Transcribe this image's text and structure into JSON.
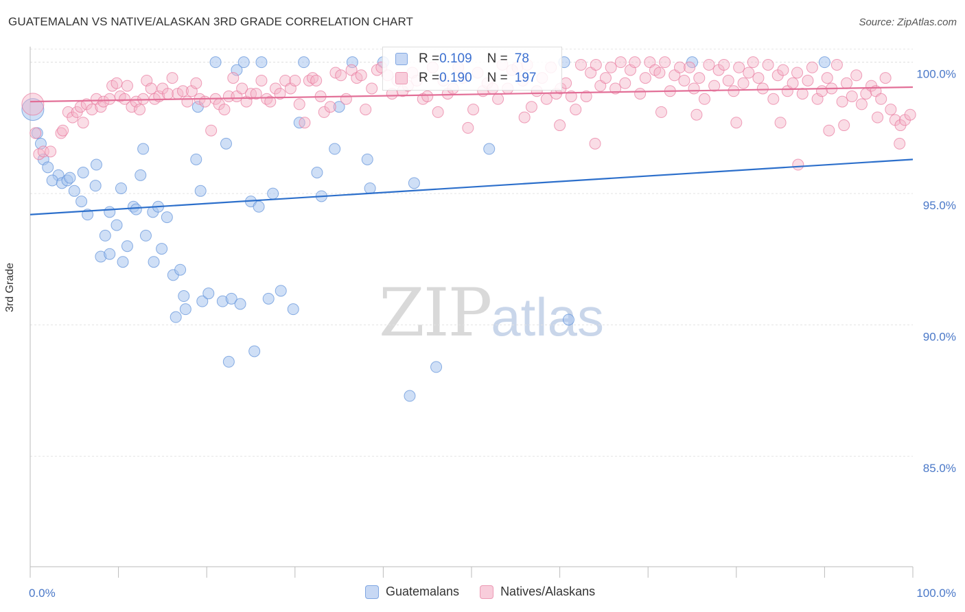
{
  "title": "GUATEMALAN VS NATIVE/ALASKAN 3RD GRADE CORRELATION CHART",
  "source": "Source: ZipAtlas.com",
  "watermark": {
    "zip": "ZIP",
    "atlas": "atlas"
  },
  "stats": [
    {
      "r_label": "R = ",
      "r": "0.109",
      "n_label": "N = ",
      "n": "78",
      "color": "#a8c4ee"
    },
    {
      "r_label": "R = ",
      "r": "0.190",
      "n_label": "N = ",
      "n": "197",
      "color": "#f4b3c8"
    }
  ],
  "chart_data": {
    "type": "scatter",
    "title": "GUATEMALAN VS NATIVE/ALASKAN 3RD GRADE CORRELATION CHART",
    "xlabel": "",
    "ylabel": "3rd Grade",
    "xlim": [
      0,
      100
    ],
    "ylim": [
      80.8,
      100.8
    ],
    "x_tick_labels": [
      "0.0%",
      "100.0%"
    ],
    "y_ticks": [
      85,
      90,
      95,
      100
    ],
    "y_tick_labels": [
      "85.0%",
      "90.0%",
      "95.0%",
      "100.0%"
    ],
    "grid": true,
    "legend_position": "bottom-center",
    "series": [
      {
        "name": "Guatemalans",
        "color": "#5b8fd8",
        "fill": "#a8c4ee",
        "trend": {
          "x": [
            0,
            100
          ],
          "y": [
            94.2,
            96.3
          ]
        },
        "points": [
          [
            0.3,
            98.2
          ],
          [
            0.8,
            97.3
          ],
          [
            1.2,
            96.9
          ],
          [
            1.5,
            96.3
          ],
          [
            2.0,
            96.0
          ],
          [
            3.2,
            95.7
          ],
          [
            2.5,
            95.5
          ],
          [
            3.6,
            95.4
          ],
          [
            4.2,
            95.5
          ],
          [
            4.5,
            95.6
          ],
          [
            5.0,
            95.1
          ],
          [
            6.0,
            95.8
          ],
          [
            5.8,
            94.7
          ],
          [
            6.5,
            94.2
          ],
          [
            7.4,
            95.3
          ],
          [
            7.5,
            96.1
          ],
          [
            9.0,
            94.3
          ],
          [
            8.5,
            93.4
          ],
          [
            8.0,
            92.6
          ],
          [
            9.0,
            92.7
          ],
          [
            9.8,
            93.8
          ],
          [
            10.3,
            95.2
          ],
          [
            10.5,
            92.4
          ],
          [
            11.0,
            93.0
          ],
          [
            11.7,
            94.5
          ],
          [
            12.0,
            94.4
          ],
          [
            12.5,
            95.7
          ],
          [
            12.8,
            96.7
          ],
          [
            13.1,
            93.4
          ],
          [
            13.9,
            94.3
          ],
          [
            14.0,
            92.4
          ],
          [
            14.5,
            94.5
          ],
          [
            14.9,
            92.9
          ],
          [
            15.5,
            94.1
          ],
          [
            16.2,
            91.9
          ],
          [
            16.5,
            90.3
          ],
          [
            17.0,
            92.1
          ],
          [
            17.4,
            91.1
          ],
          [
            17.6,
            90.6
          ],
          [
            18.8,
            96.3
          ],
          [
            19.0,
            98.3
          ],
          [
            19.3,
            95.1
          ],
          [
            19.5,
            90.9
          ],
          [
            20.2,
            91.2
          ],
          [
            21.0,
            100.0
          ],
          [
            21.8,
            90.9
          ],
          [
            22.2,
            96.9
          ],
          [
            22.5,
            88.6
          ],
          [
            22.8,
            91.0
          ],
          [
            23.4,
            99.7
          ],
          [
            23.8,
            90.8
          ],
          [
            24.2,
            100.0
          ],
          [
            25.0,
            94.7
          ],
          [
            25.4,
            89.0
          ],
          [
            25.9,
            94.5
          ],
          [
            26.2,
            100.0
          ],
          [
            27.0,
            91.0
          ],
          [
            27.5,
            95.0
          ],
          [
            28.4,
            91.3
          ],
          [
            29.8,
            90.6
          ],
          [
            30.5,
            97.7
          ],
          [
            31.0,
            100.0
          ],
          [
            32.5,
            95.8
          ],
          [
            33.0,
            94.9
          ],
          [
            34.5,
            96.7
          ],
          [
            35.0,
            98.3
          ],
          [
            36.5,
            100.0
          ],
          [
            38.2,
            96.3
          ],
          [
            38.5,
            95.2
          ],
          [
            40.0,
            100.0
          ],
          [
            43.5,
            95.4
          ],
          [
            46.0,
            88.4
          ],
          [
            43.0,
            87.3
          ],
          [
            52.0,
            96.7
          ],
          [
            60.5,
            100.0
          ],
          [
            61.0,
            90.2
          ],
          [
            75.0,
            100.0
          ],
          [
            90.0,
            100.0
          ]
        ]
      },
      {
        "name": "Natives/Alaskans",
        "color": "#e8789c",
        "fill": "#f4b3c8",
        "trend": {
          "x": [
            0,
            100
          ],
          "y": [
            98.5,
            99.05
          ]
        },
        "points": [
          [
            0.3,
            98.4
          ],
          [
            0.6,
            97.3
          ],
          [
            1.0,
            96.5
          ],
          [
            1.5,
            96.6
          ],
          [
            2.3,
            96.6
          ],
          [
            3.5,
            97.3
          ],
          [
            3.7,
            97.4
          ],
          [
            4.3,
            98.1
          ],
          [
            4.8,
            97.9
          ],
          [
            5.3,
            98.1
          ],
          [
            5.7,
            98.3
          ],
          [
            6.0,
            97.7
          ],
          [
            6.4,
            98.4
          ],
          [
            7.0,
            98.2
          ],
          [
            7.5,
            98.6
          ],
          [
            8.0,
            98.3
          ],
          [
            8.3,
            98.5
          ],
          [
            9.0,
            98.6
          ],
          [
            9.3,
            99.1
          ],
          [
            9.8,
            99.2
          ],
          [
            10.2,
            98.7
          ],
          [
            10.7,
            98.6
          ],
          [
            11.0,
            99.1
          ],
          [
            11.5,
            98.3
          ],
          [
            12.0,
            98.5
          ],
          [
            12.4,
            98.2
          ],
          [
            12.8,
            98.6
          ],
          [
            13.2,
            99.3
          ],
          [
            13.7,
            99.0
          ],
          [
            14.1,
            98.6
          ],
          [
            14.6,
            98.7
          ],
          [
            15.0,
            99.0
          ],
          [
            15.6,
            98.8
          ],
          [
            16.1,
            99.4
          ],
          [
            16.7,
            98.8
          ],
          [
            17.3,
            98.9
          ],
          [
            17.8,
            98.5
          ],
          [
            18.3,
            98.9
          ],
          [
            18.8,
            99.2
          ],
          [
            19.2,
            98.6
          ],
          [
            19.8,
            98.5
          ],
          [
            20.5,
            97.4
          ],
          [
            21.0,
            98.6
          ],
          [
            21.4,
            98.4
          ],
          [
            22.0,
            98.2
          ],
          [
            22.5,
            98.7
          ],
          [
            23.0,
            99.4
          ],
          [
            23.4,
            98.7
          ],
          [
            24.0,
            99.0
          ],
          [
            24.5,
            98.5
          ],
          [
            25.0,
            98.8
          ],
          [
            25.6,
            98.8
          ],
          [
            26.2,
            99.3
          ],
          [
            26.8,
            98.6
          ],
          [
            27.2,
            98.5
          ],
          [
            27.8,
            99.0
          ],
          [
            28.3,
            98.8
          ],
          [
            28.9,
            99.3
          ],
          [
            29.5,
            99.0
          ],
          [
            30.0,
            99.3
          ],
          [
            30.5,
            98.4
          ],
          [
            31.1,
            97.7
          ],
          [
            31.6,
            99.3
          ],
          [
            32.0,
            99.4
          ],
          [
            32.4,
            99.3
          ],
          [
            32.9,
            98.7
          ],
          [
            33.3,
            98.1
          ],
          [
            34.0,
            98.3
          ],
          [
            34.6,
            99.6
          ],
          [
            35.2,
            99.5
          ],
          [
            35.8,
            98.6
          ],
          [
            36.4,
            99.7
          ],
          [
            37.0,
            99.4
          ],
          [
            37.5,
            99.5
          ],
          [
            38.0,
            98.2
          ],
          [
            38.7,
            99.0
          ],
          [
            39.3,
            99.7
          ],
          [
            39.8,
            99.8
          ],
          [
            40.5,
            99.5
          ],
          [
            41.0,
            98.8
          ],
          [
            41.6,
            99.3
          ],
          [
            42.2,
            98.9
          ],
          [
            42.8,
            99.1
          ],
          [
            43.3,
            99.6
          ],
          [
            43.8,
            99.3
          ],
          [
            44.5,
            98.6
          ],
          [
            45.0,
            98.7
          ],
          [
            45.6,
            99.8
          ],
          [
            46.2,
            98.1
          ],
          [
            46.8,
            99.3
          ],
          [
            47.3,
            98.8
          ],
          [
            47.9,
            99.0
          ],
          [
            48.5,
            99.8
          ],
          [
            49.0,
            99.4
          ],
          [
            49.6,
            97.5
          ],
          [
            50.2,
            98.2
          ],
          [
            50.7,
            99.6
          ],
          [
            51.3,
            98.9
          ],
          [
            51.8,
            99.2
          ],
          [
            52.4,
            99.0
          ],
          [
            53.0,
            98.6
          ],
          [
            53.5,
            99.9
          ],
          [
            54.1,
            99.0
          ],
          [
            54.6,
            99.7
          ],
          [
            55.2,
            99.8
          ],
          [
            55.8,
            99.3
          ],
          [
            56.3,
            99.9
          ],
          [
            56.8,
            98.3
          ],
          [
            57.4,
            98.9
          ],
          [
            58.0,
            99.4
          ],
          [
            58.5,
            98.6
          ],
          [
            59.0,
            99.8
          ],
          [
            59.6,
            98.8
          ],
          [
            60.1,
            99.0
          ],
          [
            60.7,
            99.2
          ],
          [
            61.3,
            98.7
          ],
          [
            61.8,
            98.2
          ],
          [
            62.4,
            99.9
          ],
          [
            63.0,
            98.7
          ],
          [
            63.5,
            99.6
          ],
          [
            64.1,
            99.9
          ],
          [
            64.6,
            99.1
          ],
          [
            65.2,
            99.4
          ],
          [
            65.8,
            99.8
          ],
          [
            66.3,
            99.0
          ],
          [
            66.9,
            100.0
          ],
          [
            67.4,
            99.2
          ],
          [
            68.0,
            99.7
          ],
          [
            68.5,
            100.0
          ],
          [
            69.1,
            98.8
          ],
          [
            69.7,
            99.4
          ],
          [
            70.2,
            100.0
          ],
          [
            70.8,
            99.7
          ],
          [
            71.3,
            99.6
          ],
          [
            71.9,
            100.0
          ],
          [
            72.5,
            98.9
          ],
          [
            73.0,
            99.5
          ],
          [
            73.6,
            99.8
          ],
          [
            74.1,
            99.3
          ],
          [
            74.7,
            99.8
          ],
          [
            75.2,
            99.0
          ],
          [
            75.8,
            99.4
          ],
          [
            76.4,
            98.6
          ],
          [
            76.9,
            99.9
          ],
          [
            77.5,
            99.1
          ],
          [
            78.0,
            99.7
          ],
          [
            78.6,
            99.9
          ],
          [
            79.1,
            99.3
          ],
          [
            79.7,
            98.9
          ],
          [
            80.3,
            99.8
          ],
          [
            80.8,
            99.2
          ],
          [
            81.4,
            99.6
          ],
          [
            81.9,
            100.0
          ],
          [
            82.5,
            99.4
          ],
          [
            83.0,
            99.0
          ],
          [
            83.6,
            99.9
          ],
          [
            84.2,
            98.6
          ],
          [
            84.7,
            99.5
          ],
          [
            85.3,
            99.7
          ],
          [
            85.8,
            98.9
          ],
          [
            86.4,
            99.2
          ],
          [
            86.9,
            99.6
          ],
          [
            87.5,
            98.8
          ],
          [
            88.1,
            99.3
          ],
          [
            88.6,
            99.8
          ],
          [
            89.2,
            98.6
          ],
          [
            89.7,
            98.9
          ],
          [
            90.3,
            99.4
          ],
          [
            90.8,
            99.0
          ],
          [
            91.4,
            99.9
          ],
          [
            92.0,
            98.5
          ],
          [
            92.5,
            99.2
          ],
          [
            93.1,
            98.7
          ],
          [
            93.6,
            99.5
          ],
          [
            94.2,
            98.4
          ],
          [
            94.7,
            98.8
          ],
          [
            95.3,
            99.1
          ],
          [
            95.8,
            98.9
          ],
          [
            96.4,
            98.6
          ],
          [
            96.9,
            99.4
          ],
          [
            97.5,
            98.2
          ],
          [
            98.0,
            97.8
          ],
          [
            98.6,
            97.6
          ],
          [
            99.1,
            97.8
          ],
          [
            99.7,
            98.0
          ],
          [
            80.0,
            97.7
          ],
          [
            87.0,
            96.1
          ],
          [
            64.0,
            96.9
          ],
          [
            60.0,
            97.6
          ],
          [
            71.5,
            98.1
          ],
          [
            75.5,
            98.0
          ],
          [
            85.0,
            97.7
          ],
          [
            90.5,
            97.4
          ],
          [
            96.0,
            97.9
          ],
          [
            98.5,
            96.9
          ],
          [
            92.2,
            97.6
          ],
          [
            56.0,
            97.9
          ]
        ]
      }
    ]
  }
}
